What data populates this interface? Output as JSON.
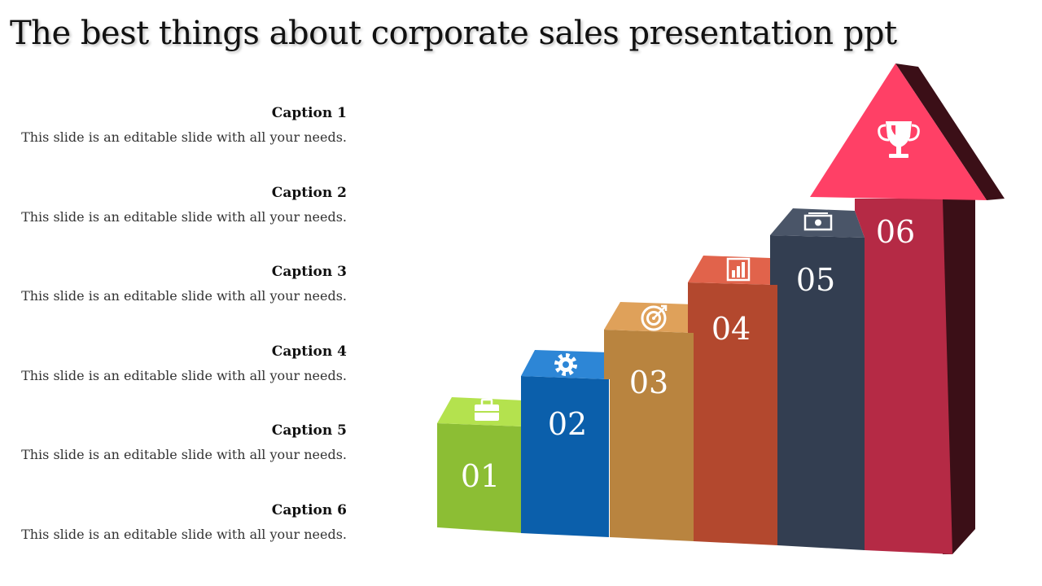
{
  "title": "The best things about corporate sales presentation ppt",
  "captions": [
    {
      "title": "Caption 1",
      "text": "This slide is an editable slide with all your needs."
    },
    {
      "title": "Caption 2",
      "text": "This slide is an editable slide with all your needs."
    },
    {
      "title": "Caption 3",
      "text": "This slide is an editable slide with all your needs."
    },
    {
      "title": "Caption 4",
      "text": "This slide is an editable slide with all your needs."
    },
    {
      "title": "Caption 5",
      "text": "This slide is an editable slide with all your needs."
    },
    {
      "title": "Caption 6",
      "text": "This slide is an editable slide with all your needs."
    }
  ],
  "steps": [
    {
      "number": "01",
      "icon": "briefcase-icon",
      "color": "#8cbe34"
    },
    {
      "number": "02",
      "icon": "gear-icon",
      "color": "#0b5fab"
    },
    {
      "number": "03",
      "icon": "target-icon",
      "color": "#b9843f"
    },
    {
      "number": "04",
      "icon": "bar-chart-icon",
      "color": "#b3482e"
    },
    {
      "number": "05",
      "icon": "money-icon",
      "color": "#333e51"
    },
    {
      "number": "06",
      "icon": "trophy-icon",
      "color": "#b52a45"
    }
  ]
}
